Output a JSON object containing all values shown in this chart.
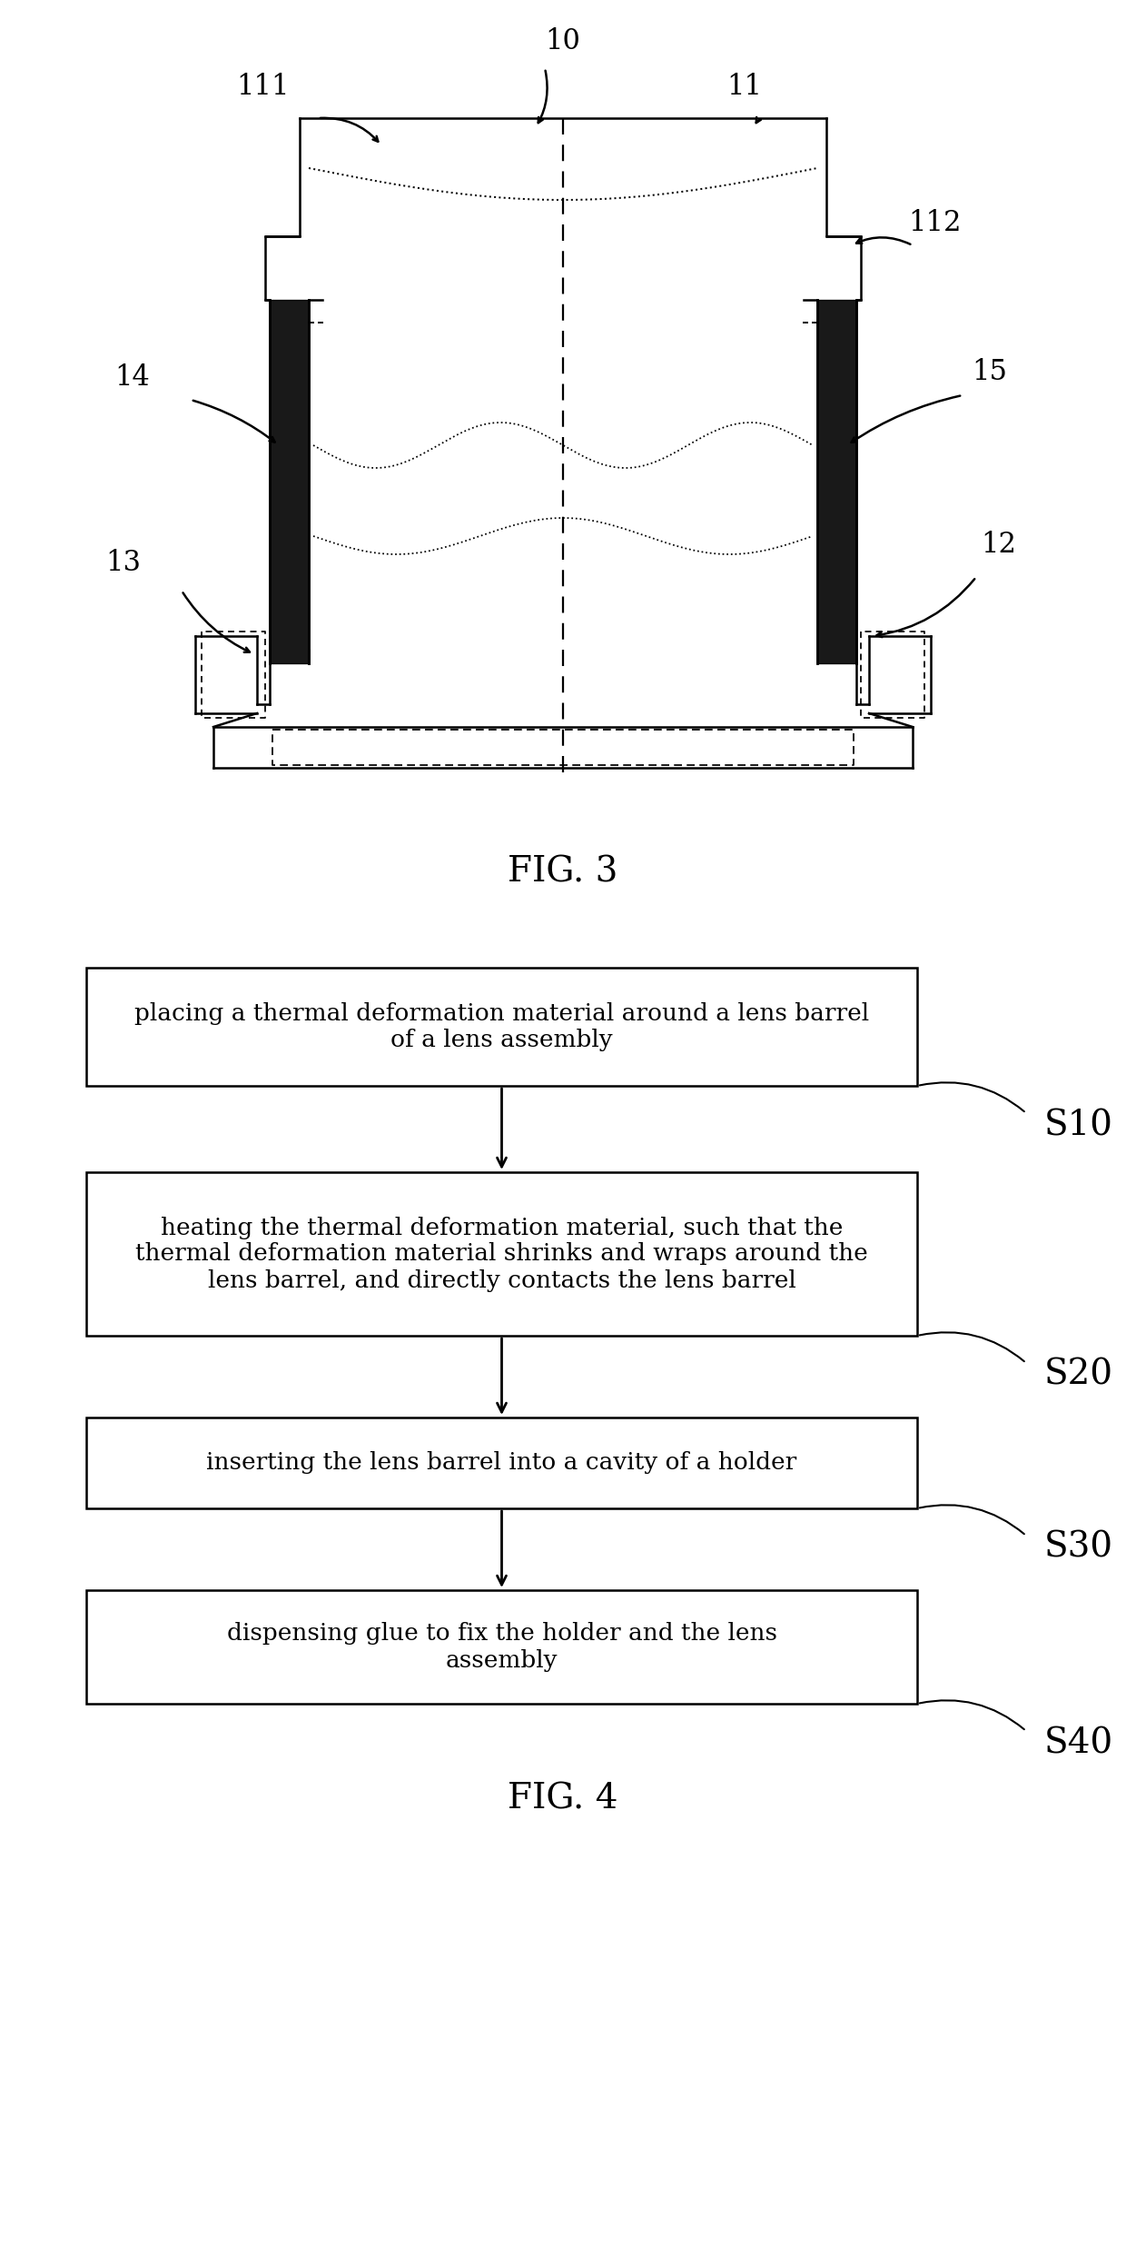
{
  "background_color": "#ffffff",
  "line_color": "#000000",
  "fig3_caption": "FIG. 3",
  "fig4_caption": "FIG. 4",
  "label_10": "10",
  "label_11": "11",
  "label_111": "111",
  "label_112": "112",
  "label_12": "12",
  "label_13": "13",
  "label_14": "14",
  "label_15": "15",
  "flowchart": [
    {
      "text": "placing a thermal deformation material around a lens barrel\nof a lens assembly",
      "label": "S10"
    },
    {
      "text": "heating the thermal deformation material, such that the\nthermal deformation material shrinks and wraps around the\nlens barrel, and directly contacts the lens barrel",
      "label": "S20"
    },
    {
      "text": "inserting the lens barrel into a cavity of a holder",
      "label": "S30"
    },
    {
      "text": "dispensing glue to fix the holder and the lens\nassembly",
      "label": "S40"
    }
  ]
}
